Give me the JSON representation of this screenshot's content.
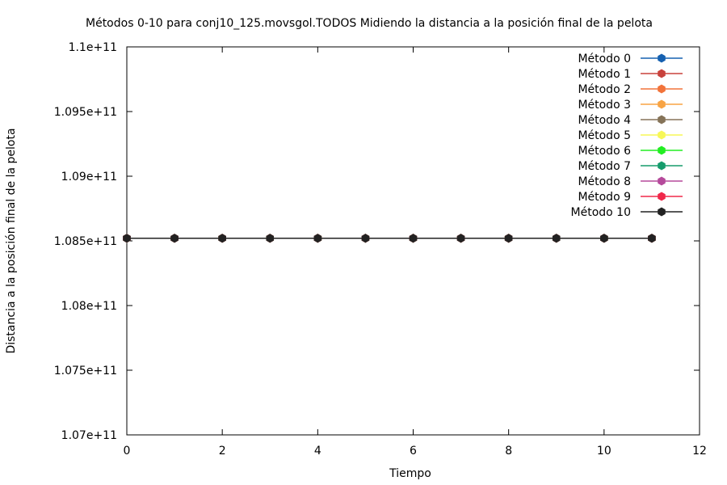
{
  "chart_data": {
    "type": "line",
    "title": "Métodos 0-10 para conj10_125.movsgol.TODOS Midiendo la distancia a la posición final de la pelota",
    "xlabel": "Tiempo",
    "ylabel": "Distancia a la posición final de la pelota",
    "xlim": [
      0,
      12
    ],
    "ylim": [
      107000000000,
      110000000000
    ],
    "x_ticks": [
      0,
      2,
      4,
      6,
      8,
      10,
      12
    ],
    "y_ticks": [
      107000000000,
      107500000000,
      108000000000,
      108500000000,
      109000000000,
      109500000000,
      110000000000
    ],
    "x_tick_labels": [
      "0",
      "2",
      "4",
      "6",
      "8",
      "10",
      "12"
    ],
    "y_tick_labels": [
      "1.07e+11",
      "1.075e+11",
      "1.08e+11",
      "1.085e+11",
      "1.09e+11",
      "1.095e+11",
      "1.1e+11"
    ],
    "grid": false,
    "legend_position": "top-right",
    "x": [
      0,
      1,
      2,
      3,
      4,
      5,
      6,
      7,
      8,
      9,
      10,
      11
    ],
    "series": [
      {
        "name": "Método 0",
        "color": "#1560b0",
        "values": [
          108520000000,
          108520000000,
          108520000000,
          108520000000,
          108520000000,
          108520000000,
          108520000000,
          108520000000,
          108520000000,
          108520000000,
          108520000000,
          108520000000
        ]
      },
      {
        "name": "Método 1",
        "color": "#c8423c",
        "values": [
          108520000000,
          108520000000,
          108520000000,
          108520000000,
          108520000000,
          108520000000,
          108520000000,
          108520000000,
          108520000000,
          108520000000,
          108520000000,
          108520000000
        ]
      },
      {
        "name": "Método 2",
        "color": "#f2733a",
        "values": [
          108520000000,
          108520000000,
          108520000000,
          108520000000,
          108520000000,
          108520000000,
          108520000000,
          108520000000,
          108520000000,
          108520000000,
          108520000000,
          108520000000
        ]
      },
      {
        "name": "Método 3",
        "color": "#f8a444",
        "values": [
          108520000000,
          108520000000,
          108520000000,
          108520000000,
          108520000000,
          108520000000,
          108520000000,
          108520000000,
          108520000000,
          108520000000,
          108520000000,
          108520000000
        ]
      },
      {
        "name": "Método 4",
        "color": "#857358",
        "values": [
          108520000000,
          108520000000,
          108520000000,
          108520000000,
          108520000000,
          108520000000,
          108520000000,
          108520000000,
          108520000000,
          108520000000,
          108520000000,
          108520000000
        ]
      },
      {
        "name": "Método 5",
        "color": "#f7f756",
        "values": [
          108520000000,
          108520000000,
          108520000000,
          108520000000,
          108520000000,
          108520000000,
          108520000000,
          108520000000,
          108520000000,
          108520000000,
          108520000000,
          108520000000
        ]
      },
      {
        "name": "Método 6",
        "color": "#22ee22",
        "values": [
          108520000000,
          108520000000,
          108520000000,
          108520000000,
          108520000000,
          108520000000,
          108520000000,
          108520000000,
          108520000000,
          108520000000,
          108520000000,
          108520000000
        ]
      },
      {
        "name": "Método 7",
        "color": "#169c6c",
        "values": [
          108520000000,
          108520000000,
          108520000000,
          108520000000,
          108520000000,
          108520000000,
          108520000000,
          108520000000,
          108520000000,
          108520000000,
          108520000000,
          108520000000
        ]
      },
      {
        "name": "Método 8",
        "color": "#b54a9b",
        "values": [
          108520000000,
          108520000000,
          108520000000,
          108520000000,
          108520000000,
          108520000000,
          108520000000,
          108520000000,
          108520000000,
          108520000000,
          108520000000,
          108520000000
        ]
      },
      {
        "name": "Método 9",
        "color": "#f0284a",
        "values": [
          108520000000,
          108520000000,
          108520000000,
          108520000000,
          108520000000,
          108520000000,
          108520000000,
          108520000000,
          108520000000,
          108520000000,
          108520000000,
          108520000000
        ]
      },
      {
        "name": "Método 10",
        "color": "#222222",
        "values": [
          108520000000,
          108520000000,
          108520000000,
          108520000000,
          108520000000,
          108520000000,
          108520000000,
          108520000000,
          108520000000,
          108520000000,
          108520000000,
          108520000000
        ]
      }
    ]
  }
}
